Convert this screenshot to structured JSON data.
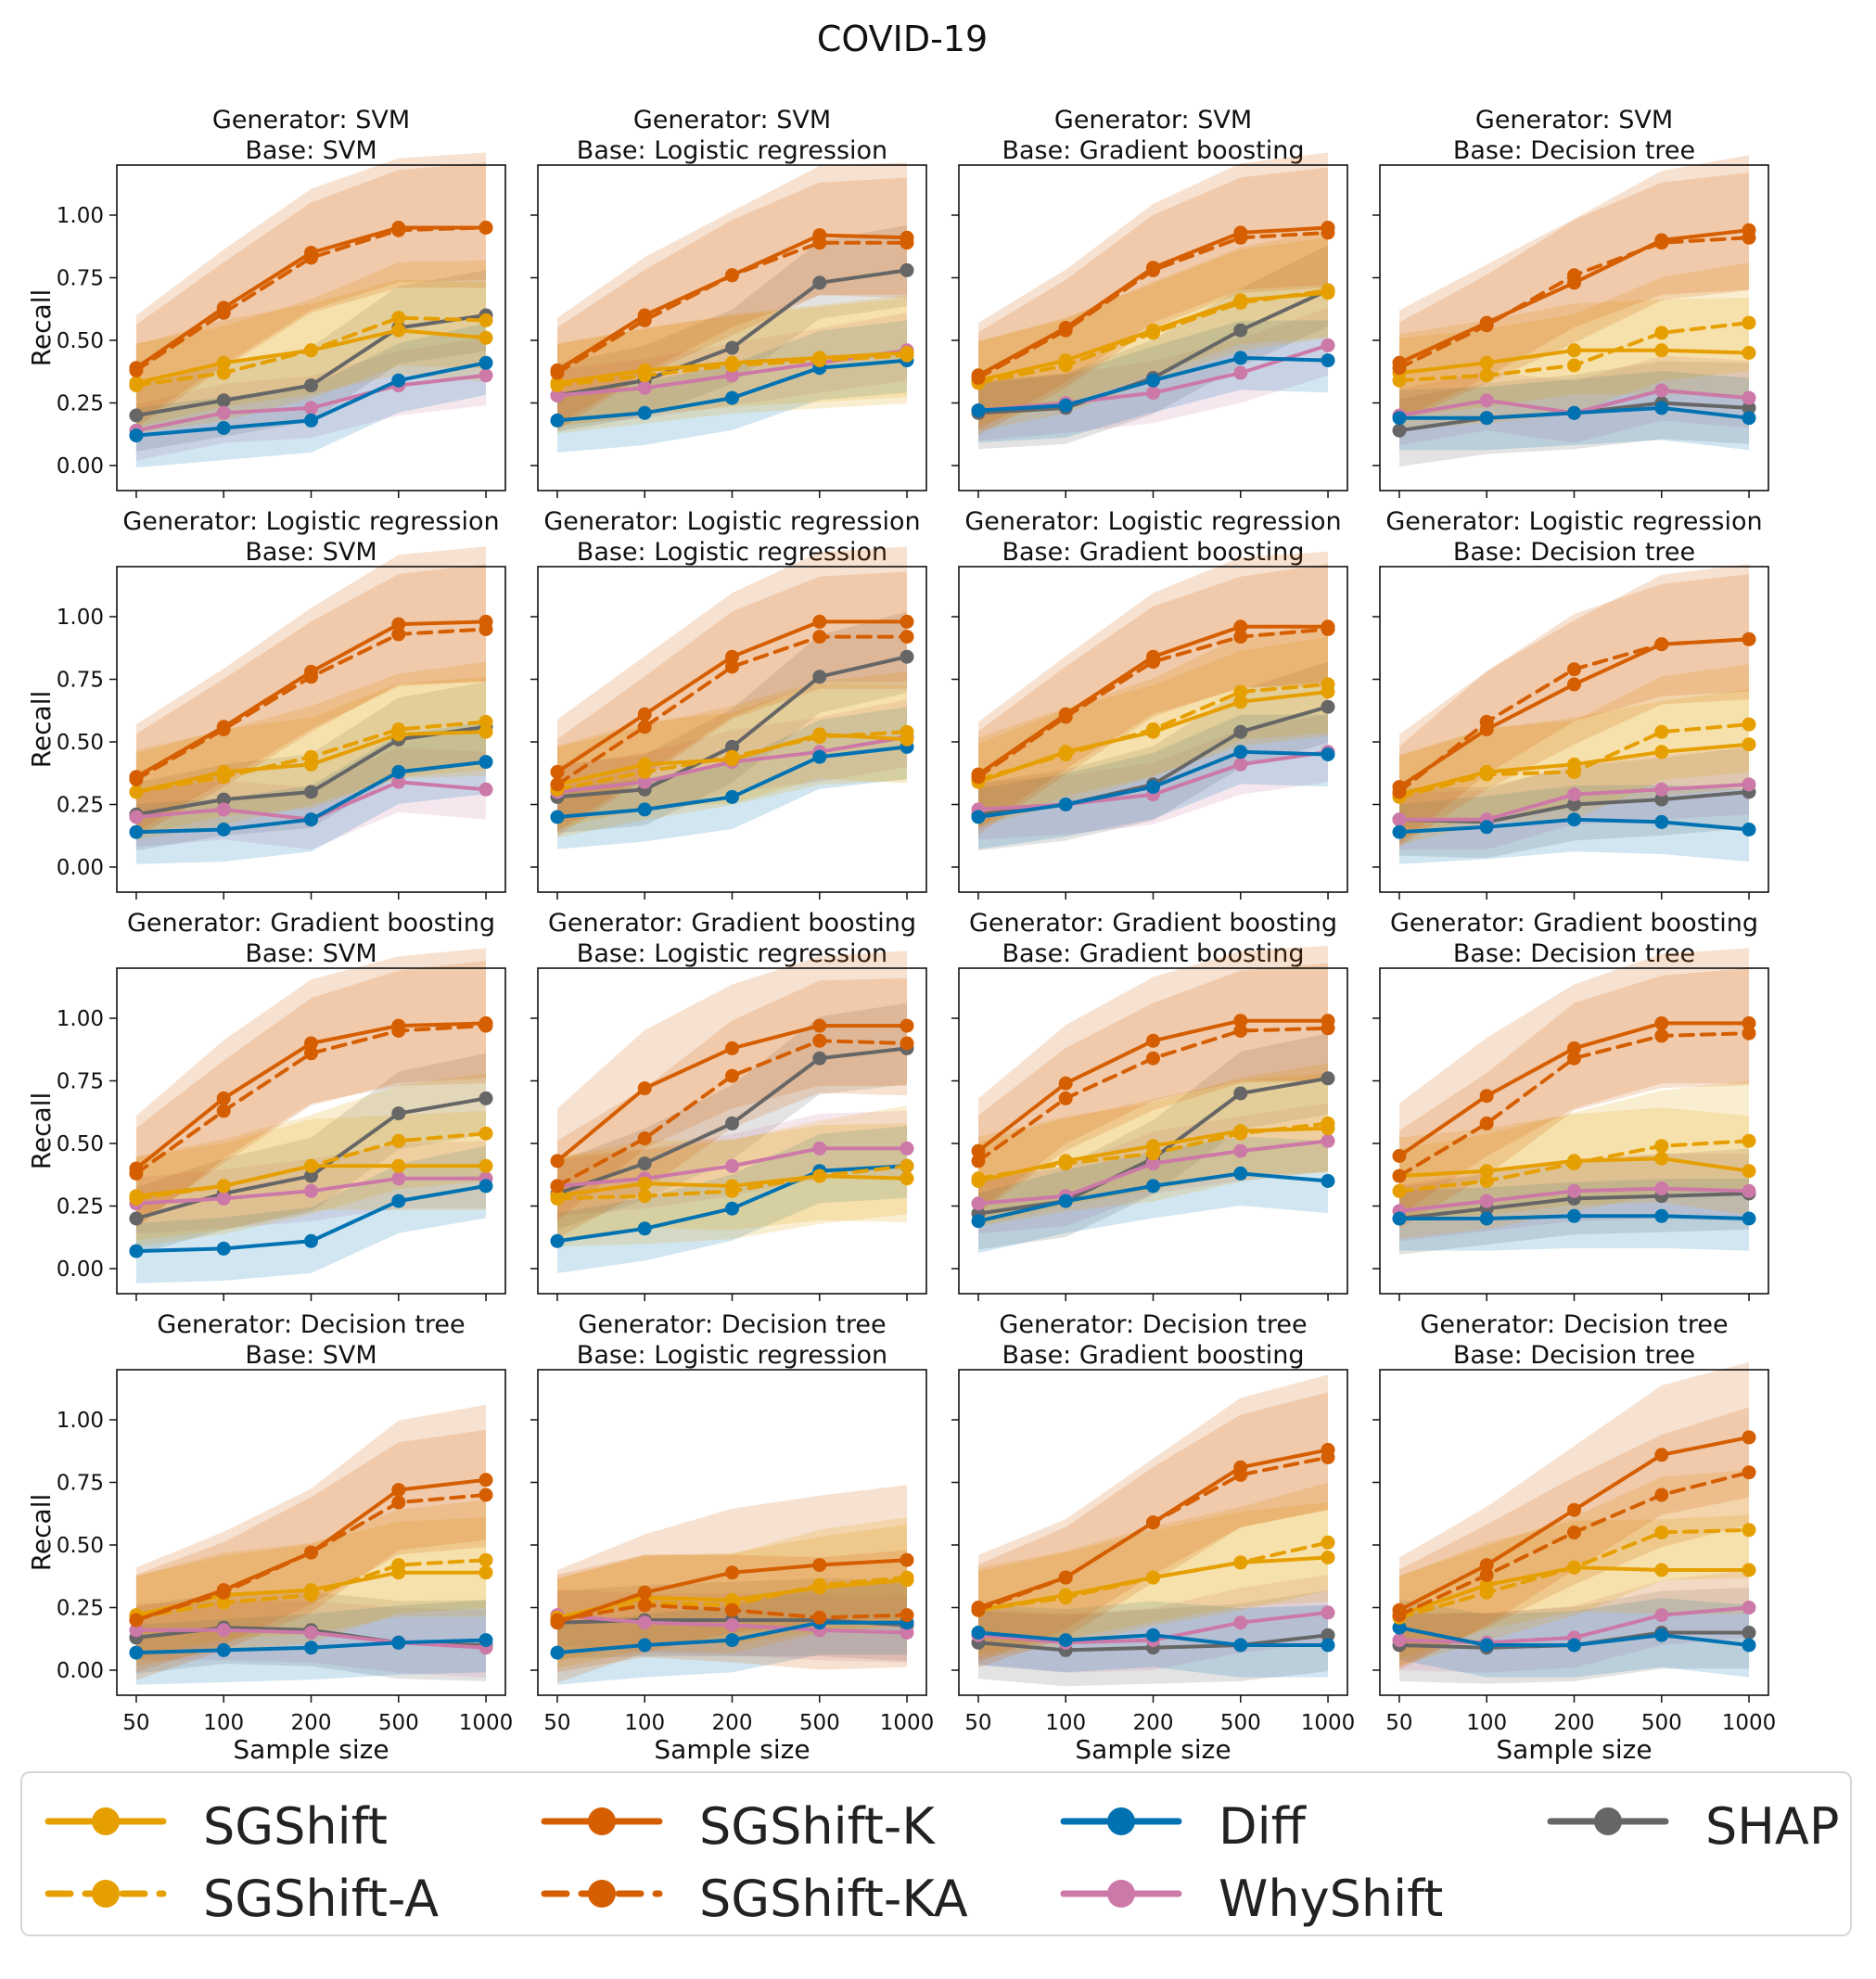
{
  "chart_data": {
    "type": "line",
    "title": "COVID-19",
    "xlabel": "Sample size",
    "ylabel": "Recall",
    "x_ticks": [
      "50",
      "100",
      "200",
      "500",
      "1000"
    ],
    "y_ticks": [
      "0.00",
      "0.25",
      "0.50",
      "0.75",
      "1.00"
    ],
    "ylim": [
      -0.1,
      1.2
    ],
    "series_styles": [
      {
        "name": "SGShift",
        "color": "#E69F00",
        "dashed": false
      },
      {
        "name": "SGShift-A",
        "color": "#E69F00",
        "dashed": true
      },
      {
        "name": "SGShift-K",
        "color": "#D55E00",
        "dashed": false
      },
      {
        "name": "SGShift-KA",
        "color": "#D55E00",
        "dashed": true
      },
      {
        "name": "Diff",
        "color": "#0072B2",
        "dashed": false
      },
      {
        "name": "WhyShift",
        "color": "#CC79A7",
        "dashed": false
      },
      {
        "name": "SHAP",
        "color": "#666666",
        "dashed": false
      }
    ],
    "panels": [
      {
        "generator": "Generator: SVM",
        "base": "Base: SVM",
        "series": {
          "SGShift": [
            0.33,
            0.41,
            0.46,
            0.54,
            0.51
          ],
          "SGShift-A": [
            0.32,
            0.37,
            0.46,
            0.59,
            0.58
          ],
          "SGShift-K": [
            0.39,
            0.63,
            0.85,
            0.95,
            0.95
          ],
          "SGShift-KA": [
            0.38,
            0.61,
            0.83,
            0.94,
            0.95
          ],
          "Diff": [
            0.12,
            0.15,
            0.18,
            0.34,
            0.41
          ],
          "WhyShift": [
            0.14,
            0.21,
            0.23,
            0.32,
            0.36
          ],
          "SHAP": [
            0.2,
            0.26,
            0.32,
            0.55,
            0.6
          ]
        }
      },
      {
        "generator": "Generator: SVM",
        "base": "Base: Logistic regression",
        "series": {
          "SGShift": [
            0.33,
            0.38,
            0.41,
            0.43,
            0.45
          ],
          "SGShift-A": [
            0.32,
            0.36,
            0.4,
            0.42,
            0.44
          ],
          "SGShift-K": [
            0.38,
            0.6,
            0.76,
            0.92,
            0.91
          ],
          "SGShift-KA": [
            0.37,
            0.58,
            0.76,
            0.89,
            0.89
          ],
          "Diff": [
            0.18,
            0.21,
            0.27,
            0.39,
            0.42
          ],
          "WhyShift": [
            0.28,
            0.31,
            0.36,
            0.41,
            0.46
          ],
          "SHAP": [
            0.28,
            0.34,
            0.47,
            0.73,
            0.78
          ]
        }
      },
      {
        "generator": "Generator: SVM",
        "base": "Base: Gradient boosting",
        "series": {
          "SGShift": [
            0.34,
            0.42,
            0.54,
            0.66,
            0.69
          ],
          "SGShift-A": [
            0.33,
            0.4,
            0.53,
            0.65,
            0.7
          ],
          "SGShift-K": [
            0.36,
            0.55,
            0.79,
            0.93,
            0.95
          ],
          "SGShift-KA": [
            0.35,
            0.54,
            0.78,
            0.91,
            0.93
          ],
          "Diff": [
            0.22,
            0.24,
            0.34,
            0.43,
            0.42
          ],
          "WhyShift": [
            0.22,
            0.25,
            0.29,
            0.37,
            0.48
          ],
          "SHAP": [
            0.21,
            0.23,
            0.35,
            0.54,
            0.7
          ]
        }
      },
      {
        "generator": "Generator: SVM",
        "base": "Base: Decision tree",
        "series": {
          "SGShift": [
            0.37,
            0.41,
            0.46,
            0.46,
            0.45
          ],
          "SGShift-A": [
            0.34,
            0.36,
            0.4,
            0.53,
            0.57
          ],
          "SGShift-K": [
            0.41,
            0.57,
            0.73,
            0.9,
            0.94
          ],
          "SGShift-KA": [
            0.39,
            0.56,
            0.76,
            0.89,
            0.91
          ],
          "Diff": [
            0.19,
            0.19,
            0.21,
            0.23,
            0.19
          ],
          "WhyShift": [
            0.2,
            0.26,
            0.21,
            0.3,
            0.27
          ],
          "SHAP": [
            0.14,
            0.19,
            0.21,
            0.25,
            0.23
          ]
        }
      },
      {
        "generator": "Generator: Logistic regression",
        "base": "Base: SVM",
        "series": {
          "SGShift": [
            0.3,
            0.38,
            0.41,
            0.53,
            0.54
          ],
          "SGShift-A": [
            0.3,
            0.36,
            0.44,
            0.55,
            0.58
          ],
          "SGShift-K": [
            0.36,
            0.56,
            0.78,
            0.97,
            0.98
          ],
          "SGShift-KA": [
            0.35,
            0.55,
            0.76,
            0.93,
            0.95
          ],
          "Diff": [
            0.14,
            0.15,
            0.19,
            0.38,
            0.42
          ],
          "WhyShift": [
            0.2,
            0.23,
            0.19,
            0.34,
            0.31
          ],
          "SHAP": [
            0.21,
            0.27,
            0.3,
            0.51,
            0.56
          ]
        }
      },
      {
        "generator": "Generator: Logistic regression",
        "base": "Base: Logistic regression",
        "series": {
          "SGShift": [
            0.33,
            0.41,
            0.43,
            0.53,
            0.51
          ],
          "SGShift-A": [
            0.31,
            0.38,
            0.44,
            0.52,
            0.54
          ],
          "SGShift-K": [
            0.38,
            0.61,
            0.84,
            0.98,
            0.98
          ],
          "SGShift-KA": [
            0.33,
            0.56,
            0.8,
            0.92,
            0.92
          ],
          "Diff": [
            0.2,
            0.23,
            0.28,
            0.44,
            0.48
          ],
          "WhyShift": [
            0.3,
            0.34,
            0.42,
            0.46,
            0.52
          ],
          "SHAP": [
            0.28,
            0.31,
            0.48,
            0.76,
            0.84
          ]
        }
      },
      {
        "generator": "Generator: Logistic regression",
        "base": "Base: Gradient boosting",
        "series": {
          "SGShift": [
            0.34,
            0.46,
            0.54,
            0.66,
            0.7
          ],
          "SGShift-A": [
            0.35,
            0.45,
            0.55,
            0.7,
            0.73
          ],
          "SGShift-K": [
            0.37,
            0.61,
            0.84,
            0.96,
            0.96
          ],
          "SGShift-KA": [
            0.36,
            0.6,
            0.82,
            0.92,
            0.95
          ],
          "Diff": [
            0.2,
            0.25,
            0.32,
            0.46,
            0.45
          ],
          "WhyShift": [
            0.23,
            0.25,
            0.29,
            0.41,
            0.46
          ],
          "SHAP": [
            0.21,
            0.25,
            0.33,
            0.54,
            0.64
          ]
        }
      },
      {
        "generator": "Generator: Logistic regression",
        "base": "Base: Decision tree",
        "series": {
          "SGShift": [
            0.29,
            0.38,
            0.41,
            0.46,
            0.49
          ],
          "SGShift-A": [
            0.28,
            0.37,
            0.38,
            0.54,
            0.57
          ],
          "SGShift-K": [
            0.32,
            0.55,
            0.73,
            0.89,
            0.91
          ],
          "SGShift-KA": [
            0.3,
            0.58,
            0.79,
            0.89,
            0.91
          ],
          "Diff": [
            0.14,
            0.16,
            0.19,
            0.18,
            0.15
          ],
          "WhyShift": [
            0.19,
            0.19,
            0.29,
            0.31,
            0.33
          ],
          "SHAP": [
            0.19,
            0.18,
            0.25,
            0.27,
            0.3
          ]
        }
      },
      {
        "generator": "Generator: Gradient boosting",
        "base": "Base: SVM",
        "series": {
          "SGShift": [
            0.29,
            0.33,
            0.41,
            0.41,
            0.41
          ],
          "SGShift-A": [
            0.28,
            0.33,
            0.41,
            0.51,
            0.54
          ],
          "SGShift-K": [
            0.4,
            0.68,
            0.9,
            0.97,
            0.98
          ],
          "SGShift-KA": [
            0.38,
            0.63,
            0.86,
            0.95,
            0.97
          ],
          "Diff": [
            0.07,
            0.08,
            0.11,
            0.27,
            0.33
          ],
          "WhyShift": [
            0.26,
            0.28,
            0.31,
            0.36,
            0.36
          ],
          "SHAP": [
            0.2,
            0.3,
            0.37,
            0.62,
            0.68
          ]
        }
      },
      {
        "generator": "Generator: Gradient boosting",
        "base": "Base: Logistic regression",
        "series": {
          "SGShift": [
            0.29,
            0.34,
            0.33,
            0.37,
            0.36
          ],
          "SGShift-A": [
            0.28,
            0.29,
            0.31,
            0.37,
            0.41
          ],
          "SGShift-K": [
            0.43,
            0.72,
            0.88,
            0.97,
            0.97
          ],
          "SGShift-KA": [
            0.33,
            0.52,
            0.77,
            0.91,
            0.9
          ],
          "Diff": [
            0.11,
            0.16,
            0.24,
            0.39,
            0.41
          ],
          "WhyShift": [
            0.33,
            0.36,
            0.41,
            0.48,
            0.48
          ],
          "SHAP": [
            0.3,
            0.42,
            0.58,
            0.84,
            0.88
          ]
        }
      },
      {
        "generator": "Generator: Gradient boosting",
        "base": "Base: Gradient boosting",
        "series": {
          "SGShift": [
            0.35,
            0.43,
            0.49,
            0.55,
            0.56
          ],
          "SGShift-A": [
            0.36,
            0.42,
            0.46,
            0.54,
            0.58
          ],
          "SGShift-K": [
            0.47,
            0.74,
            0.91,
            0.99,
            0.99
          ],
          "SGShift-KA": [
            0.43,
            0.68,
            0.84,
            0.95,
            0.96
          ],
          "Diff": [
            0.19,
            0.27,
            0.33,
            0.38,
            0.35
          ],
          "WhyShift": [
            0.26,
            0.29,
            0.42,
            0.47,
            0.51
          ],
          "SHAP": [
            0.22,
            0.27,
            0.44,
            0.7,
            0.76
          ]
        }
      },
      {
        "generator": "Generator: Gradient boosting",
        "base": "Base: Decision tree",
        "series": {
          "SGShift": [
            0.37,
            0.39,
            0.43,
            0.44,
            0.39
          ],
          "SGShift-A": [
            0.31,
            0.35,
            0.42,
            0.49,
            0.51
          ],
          "SGShift-K": [
            0.45,
            0.69,
            0.88,
            0.98,
            0.98
          ],
          "SGShift-KA": [
            0.37,
            0.58,
            0.84,
            0.93,
            0.94
          ],
          "Diff": [
            0.2,
            0.2,
            0.21,
            0.21,
            0.2
          ],
          "WhyShift": [
            0.23,
            0.27,
            0.31,
            0.32,
            0.31
          ],
          "SHAP": [
            0.2,
            0.24,
            0.28,
            0.29,
            0.3
          ]
        }
      },
      {
        "generator": "Generator: Decision tree",
        "base": "Base: SVM",
        "series": {
          "SGShift": [
            0.22,
            0.3,
            0.32,
            0.39,
            0.39
          ],
          "SGShift-A": [
            0.21,
            0.27,
            0.3,
            0.42,
            0.44
          ],
          "SGShift-K": [
            0.2,
            0.32,
            0.47,
            0.72,
            0.76
          ],
          "SGShift-KA": [
            0.2,
            0.31,
            0.47,
            0.67,
            0.7
          ],
          "Diff": [
            0.07,
            0.08,
            0.09,
            0.11,
            0.12
          ],
          "WhyShift": [
            0.16,
            0.16,
            0.15,
            0.11,
            0.09
          ],
          "SHAP": [
            0.13,
            0.17,
            0.16,
            0.11,
            0.1
          ]
        }
      },
      {
        "generator": "Generator: Decision tree",
        "base": "Base: Logistic regression",
        "series": {
          "SGShift": [
            0.21,
            0.29,
            0.28,
            0.33,
            0.36
          ],
          "SGShift-A": [
            0.2,
            0.27,
            0.26,
            0.34,
            0.37
          ],
          "SGShift-K": [
            0.19,
            0.31,
            0.39,
            0.42,
            0.44
          ],
          "SGShift-KA": [
            0.2,
            0.26,
            0.24,
            0.21,
            0.22
          ],
          "Diff": [
            0.07,
            0.1,
            0.12,
            0.19,
            0.19
          ],
          "WhyShift": [
            0.22,
            0.19,
            0.18,
            0.16,
            0.15
          ],
          "SHAP": [
            0.19,
            0.2,
            0.2,
            0.2,
            0.18
          ]
        }
      },
      {
        "generator": "Generator: Decision tree",
        "base": "Base: Gradient boosting",
        "series": {
          "SGShift": [
            0.24,
            0.3,
            0.37,
            0.43,
            0.45
          ],
          "SGShift-A": [
            0.24,
            0.29,
            0.37,
            0.43,
            0.51
          ],
          "SGShift-K": [
            0.25,
            0.37,
            0.59,
            0.81,
            0.88
          ],
          "SGShift-KA": [
            0.24,
            0.37,
            0.59,
            0.78,
            0.85
          ],
          "Diff": [
            0.15,
            0.12,
            0.14,
            0.1,
            0.1
          ],
          "WhyShift": [
            0.14,
            0.11,
            0.12,
            0.19,
            0.23
          ],
          "SHAP": [
            0.11,
            0.08,
            0.09,
            0.1,
            0.14
          ]
        }
      },
      {
        "generator": "Generator: Decision tree",
        "base": "Base: Decision tree",
        "series": {
          "SGShift": [
            0.22,
            0.34,
            0.41,
            0.4,
            0.4
          ],
          "SGShift-A": [
            0.21,
            0.31,
            0.41,
            0.55,
            0.56
          ],
          "SGShift-K": [
            0.24,
            0.42,
            0.64,
            0.86,
            0.93
          ],
          "SGShift-KA": [
            0.22,
            0.38,
            0.55,
            0.7,
            0.79
          ],
          "Diff": [
            0.17,
            0.1,
            0.1,
            0.14,
            0.1
          ],
          "WhyShift": [
            0.12,
            0.11,
            0.13,
            0.22,
            0.25
          ],
          "SHAP": [
            0.1,
            0.09,
            0.1,
            0.15,
            0.15
          ]
        }
      }
    ]
  }
}
